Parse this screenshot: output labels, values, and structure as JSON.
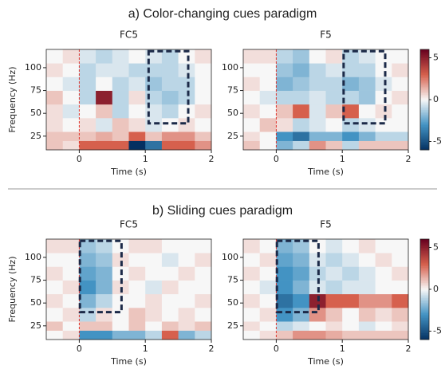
{
  "headings": [
    "a) Color-changing cues paradigm",
    "b) Sliding cues paradigm"
  ],
  "colormap": [
    "#053061",
    "#4393c3",
    "#f7f7f7",
    "#d6604d",
    "#67001f"
  ],
  "chart_data": [
    {
      "type": "heatmap",
      "title": "FC5",
      "xlabel": "Time (s)",
      "ylabel": "Frequency (Hz)",
      "xbins": [
        -0.5,
        -0.25,
        0,
        0.25,
        0.5,
        0.75,
        1,
        1.25,
        1.5,
        1.75,
        2
      ],
      "ybins": [
        10,
        20,
        30,
        45,
        60,
        75,
        90,
        105,
        120
      ],
      "xlim": [
        -0.5,
        2
      ],
      "ylim": [
        10,
        120
      ],
      "xticks": [
        0,
        1,
        2
      ],
      "yticks": [
        25,
        50,
        75,
        100
      ],
      "clim": [
        -6,
        6
      ],
      "vline": {
        "x": 0,
        "color": "#e0342c"
      },
      "highlight": {
        "x": [
          1.05,
          1.65
        ],
        "y": [
          39,
          118
        ],
        "color": "#1c2a48"
      },
      "values": [
        [
          1,
          0.5,
          3,
          3,
          3,
          -6,
          -4,
          3,
          3,
          2
        ],
        [
          1,
          1,
          1,
          1.5,
          1,
          3,
          1,
          2,
          2,
          1
        ],
        [
          0.5,
          0,
          0.5,
          -0.5,
          1,
          0.5,
          -0.5,
          0,
          0.5,
          0
        ],
        [
          0.5,
          -0.5,
          0,
          1,
          -1,
          0,
          -0.5,
          -1,
          0,
          0.5
        ],
        [
          1,
          0,
          -1,
          5,
          -1,
          0.5,
          -1,
          -1.5,
          -1,
          0
        ],
        [
          0,
          -0.5,
          -1,
          0,
          -1,
          -0.5,
          -1.5,
          -1,
          -1,
          0
        ],
        [
          0.5,
          0,
          -1,
          -0.5,
          -0.5,
          -1,
          -1,
          -1,
          -0.5,
          0
        ],
        [
          0,
          0.5,
          -0.5,
          -1,
          -0.5,
          0,
          -0.5,
          -1,
          0,
          0.5
        ]
      ]
    },
    {
      "type": "heatmap",
      "title": "F5",
      "xlabel": "Time (s)",
      "xbins": [
        -0.5,
        -0.25,
        0,
        0.25,
        0.5,
        0.75,
        1,
        1.25,
        1.5,
        1.75,
        2
      ],
      "ybins": [
        10,
        20,
        30,
        45,
        60,
        75,
        90,
        105,
        120
      ],
      "xlim": [
        -0.5,
        2
      ],
      "ylim": [
        10,
        120
      ],
      "xticks": [
        0,
        1,
        2
      ],
      "yticks": [
        25,
        50,
        75,
        100
      ],
      "clim": [
        -6,
        6
      ],
      "vline": {
        "x": 0,
        "color": "#e0342c"
      },
      "highlight": {
        "x": [
          1.02,
          1.65
        ],
        "y": [
          39,
          118
        ],
        "color": "#1c2a48"
      },
      "colorbar": {
        "ticks": [
          -5,
          0,
          5
        ]
      },
      "values": [
        [
          1,
          0,
          -2,
          -1,
          2,
          1,
          -1,
          1,
          1,
          1
        ],
        [
          0.5,
          0,
          -3,
          -4,
          -2,
          -2,
          -3,
          -2,
          -1,
          -1
        ],
        [
          0,
          1,
          0.5,
          -1,
          -0.5,
          0,
          -1,
          -0.5,
          0,
          0
        ],
        [
          0.5,
          0,
          1,
          3,
          -0.5,
          1,
          3,
          0,
          0.5,
          0
        ],
        [
          0,
          -0.5,
          -1,
          -1,
          -0.5,
          -1,
          -1,
          -1.5,
          0,
          0.5
        ],
        [
          0.5,
          0,
          -2,
          -1.5,
          -1,
          -1,
          -2,
          -1.5,
          -0.5,
          0
        ],
        [
          0,
          0,
          -1.5,
          -2,
          -1,
          -0.5,
          -1,
          -1,
          0,
          0.5
        ],
        [
          0.5,
          0.5,
          -1,
          -1.5,
          0,
          0.5,
          -1,
          -0.5,
          0,
          0
        ]
      ]
    },
    {
      "type": "heatmap",
      "title": "FC5",
      "xlabel": "Time (s)",
      "ylabel": "Frequency (Hz)",
      "xbins": [
        -0.5,
        -0.25,
        0,
        0.25,
        0.5,
        0.75,
        1,
        1.25,
        1.5,
        1.75,
        2
      ],
      "ybins": [
        10,
        20,
        30,
        45,
        60,
        75,
        90,
        105,
        120
      ],
      "xlim": [
        -0.5,
        2
      ],
      "ylim": [
        10,
        120
      ],
      "xticks": [
        0,
        1,
        2
      ],
      "yticks": [
        25,
        50,
        75,
        100
      ],
      "clim": [
        -6,
        6
      ],
      "vline": {
        "x": 0,
        "color": "#e0342c"
      },
      "highlight": {
        "x": [
          0.01,
          0.64
        ],
        "y": [
          40,
          118
        ],
        "color": "#1c2a48"
      },
      "values": [
        [
          0,
          0.5,
          -3,
          -3,
          -2,
          -2,
          -1,
          3,
          -2,
          -1
        ],
        [
          1,
          0,
          1,
          1,
          0,
          1,
          0,
          1,
          0.5,
          1
        ],
        [
          0,
          0.5,
          -1,
          0.5,
          0,
          1,
          0.5,
          0,
          0.5,
          0
        ],
        [
          0.5,
          0,
          -2,
          -1,
          0,
          0,
          0.5,
          0,
          0,
          0.5
        ],
        [
          0,
          0.5,
          -3,
          -2,
          0.5,
          0,
          -0.5,
          0.5,
          0,
          0
        ],
        [
          0.5,
          0,
          -2.5,
          -2,
          0,
          0.5,
          0,
          0,
          0.5,
          0
        ],
        [
          0,
          0,
          -2,
          -1.5,
          0.5,
          0,
          0,
          -0.5,
          0,
          0.5
        ],
        [
          0.5,
          0.5,
          -1.5,
          -1,
          0,
          0.5,
          0.5,
          0,
          0,
          0
        ]
      ]
    },
    {
      "type": "heatmap",
      "title": "F5",
      "xlabel": "Time (s)",
      "xbins": [
        -0.5,
        -0.25,
        0,
        0.25,
        0.5,
        0.75,
        1,
        1.25,
        1.5,
        1.75,
        2
      ],
      "ybins": [
        10,
        20,
        30,
        45,
        60,
        75,
        90,
        105,
        120
      ],
      "xlim": [
        -0.5,
        2
      ],
      "ylim": [
        10,
        120
      ],
      "xticks": [
        0,
        1,
        2
      ],
      "yticks": [
        25,
        50,
        75,
        100
      ],
      "clim": [
        -6,
        6
      ],
      "vline": {
        "x": 0,
        "color": "#e0342c"
      },
      "highlight": {
        "x": [
          0.01,
          0.64
        ],
        "y": [
          40,
          118
        ],
        "color": "#1c2a48"
      },
      "colorbar": {
        "ticks": [
          -5,
          0,
          5
        ]
      },
      "values": [
        [
          0,
          0.5,
          1,
          2,
          2,
          1.5,
          1,
          1,
          1,
          1
        ],
        [
          0.5,
          0,
          -1,
          -0.5,
          0,
          0.5,
          0,
          -0.5,
          0,
          0.5
        ],
        [
          0,
          0.5,
          -3,
          -2,
          2,
          1,
          0,
          1,
          0.5,
          1
        ],
        [
          0.5,
          0,
          -4,
          -3,
          5,
          3,
          3,
          2,
          2,
          3
        ],
        [
          0,
          -0.5,
          -3,
          -2,
          -0.5,
          -1,
          -0.5,
          -0.5,
          0,
          0
        ],
        [
          0.5,
          0,
          -3,
          -2.5,
          -1,
          -0.5,
          -1,
          -0.5,
          0,
          0.5
        ],
        [
          0,
          0.5,
          -2.5,
          -2,
          -0.5,
          -1,
          -0.5,
          0,
          0.5,
          0
        ],
        [
          0.5,
          0,
          -2,
          -1.5,
          0,
          -0.5,
          0,
          0.5,
          0,
          0
        ]
      ]
    }
  ]
}
